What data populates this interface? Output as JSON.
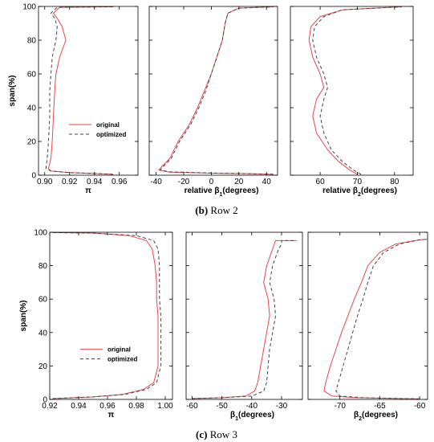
{
  "figure": {
    "rows": [
      {
        "caption_letter": "(b)",
        "caption_text": " Row 2"
      },
      {
        "caption_letter": "(c)",
        "caption_text": " Row 3"
      }
    ]
  },
  "chart_data": [
    {
      "type": "line",
      "row": 0,
      "panel": 0,
      "xlabel": "π",
      "ylabel": "span(%)",
      "xlim": [
        0.895,
        0.975
      ],
      "ylim": [
        0,
        100
      ],
      "xticks": [
        0.9,
        0.92,
        0.94,
        0.96
      ],
      "xtick_labels": [
        "0.90",
        "0.92",
        "0.94",
        "0.96"
      ],
      "yticks": [
        0,
        20,
        40,
        60,
        80,
        100
      ],
      "ytick_labels": [
        "0",
        "20",
        "40",
        "60",
        "80",
        "100"
      ],
      "legend": {
        "position": "inside-left",
        "entries": [
          "original",
          "optimized"
        ]
      },
      "series": [
        {
          "name": "original",
          "color": "#e8474c",
          "dash": "",
          "points": [
            [
              0.955,
              0.5
            ],
            [
              0.94,
              1
            ],
            [
              0.92,
              1.5
            ],
            [
              0.905,
              2.5
            ],
            [
              0.903,
              4
            ],
            [
              0.905,
              10
            ],
            [
              0.906,
              20
            ],
            [
              0.907,
              35
            ],
            [
              0.908,
              50
            ],
            [
              0.909,
              60
            ],
            [
              0.912,
              70
            ],
            [
              0.917,
              80
            ],
            [
              0.914,
              88
            ],
            [
              0.91,
              93
            ],
            [
              0.907,
              96
            ],
            [
              0.912,
              99.5
            ],
            [
              0.955,
              99.8
            ]
          ]
        },
        {
          "name": "optimized",
          "color": "#444444",
          "dash": "4,3",
          "points": [
            [
              0.955,
              0.5
            ],
            [
              0.94,
              1
            ],
            [
              0.92,
              1.5
            ],
            [
              0.905,
              2.5
            ],
            [
              0.901,
              4
            ],
            [
              0.902,
              10
            ],
            [
              0.903,
              20
            ],
            [
              0.904,
              35
            ],
            [
              0.904,
              50
            ],
            [
              0.905,
              60
            ],
            [
              0.906,
              70
            ],
            [
              0.909,
              80
            ],
            [
              0.91,
              88
            ],
            [
              0.908,
              93
            ],
            [
              0.905,
              96
            ],
            [
              0.91,
              99.5
            ],
            [
              0.955,
              99.8
            ]
          ]
        }
      ]
    },
    {
      "type": "line",
      "row": 0,
      "panel": 1,
      "xlabel": "relative β1(degrees)",
      "xlim": [
        -45,
        48
      ],
      "ylim": [
        0,
        100
      ],
      "xticks": [
        -40,
        -20,
        0,
        20,
        40
      ],
      "xtick_labels": [
        "-40",
        "-20",
        "0",
        "20",
        "40"
      ],
      "yticks": [
        0,
        20,
        40,
        60,
        80,
        100
      ],
      "series": [
        {
          "name": "original",
          "color": "#e8474c",
          "dash": "",
          "points": [
            [
              45,
              0.5
            ],
            [
              20,
              1
            ],
            [
              0,
              1.2
            ],
            [
              -30,
              1.8
            ],
            [
              -38,
              3
            ],
            [
              -36,
              5
            ],
            [
              -30,
              10
            ],
            [
              -24,
              20
            ],
            [
              -16,
              30
            ],
            [
              -10,
              40
            ],
            [
              -5,
              50
            ],
            [
              0,
              60
            ],
            [
              4,
              70
            ],
            [
              8,
              80
            ],
            [
              10,
              90
            ],
            [
              12,
              96
            ],
            [
              20,
              99
            ],
            [
              45,
              99.8
            ]
          ]
        },
        {
          "name": "optimized",
          "color": "#444444",
          "dash": "4,3",
          "points": [
            [
              45,
              0.5
            ],
            [
              20,
              1
            ],
            [
              0,
              1.3
            ],
            [
              -30,
              2
            ],
            [
              -37,
              3
            ],
            [
              -35,
              5
            ],
            [
              -29,
              10
            ],
            [
              -23,
              20
            ],
            [
              -15,
              30
            ],
            [
              -9,
              40
            ],
            [
              -4,
              50
            ],
            [
              0,
              60
            ],
            [
              4,
              70
            ],
            [
              8,
              80
            ],
            [
              10,
              90
            ],
            [
              12,
              96
            ],
            [
              20,
              99
            ],
            [
              45,
              99.8
            ]
          ]
        }
      ]
    },
    {
      "type": "line",
      "row": 0,
      "panel": 2,
      "xlabel": "relative β2(degrees)",
      "xlim": [
        52,
        85
      ],
      "ylim": [
        0,
        100
      ],
      "xticks": [
        60,
        70,
        80
      ],
      "xtick_labels": [
        "60",
        "70",
        "80"
      ],
      "yticks": [
        0,
        20,
        40,
        60,
        80,
        100
      ],
      "series": [
        {
          "name": "original",
          "color": "#e8474c",
          "dash": "",
          "points": [
            [
              70,
              0.5
            ],
            [
              68,
              3
            ],
            [
              65,
              8
            ],
            [
              62,
              15
            ],
            [
              59,
              25
            ],
            [
              58,
              35
            ],
            [
              59,
              45
            ],
            [
              61,
              52
            ],
            [
              60,
              60
            ],
            [
              58,
              70
            ],
            [
              57,
              80
            ],
            [
              57.5,
              88
            ],
            [
              60,
              94
            ],
            [
              66,
              98
            ],
            [
              82,
              99.8
            ]
          ]
        },
        {
          "name": "optimized",
          "color": "#444444",
          "dash": "4,3",
          "points": [
            [
              71,
              0.5
            ],
            [
              69,
              3
            ],
            [
              66,
              8
            ],
            [
              63,
              15
            ],
            [
              61,
              25
            ],
            [
              60,
              35
            ],
            [
              61,
              45
            ],
            [
              62,
              52
            ],
            [
              61,
              60
            ],
            [
              59,
              70
            ],
            [
              58,
              80
            ],
            [
              58.5,
              88
            ],
            [
              61,
              94
            ],
            [
              66,
              98
            ],
            [
              82,
              99.8
            ]
          ]
        }
      ]
    },
    {
      "type": "line",
      "row": 1,
      "panel": 0,
      "xlabel": "π",
      "ylabel": "span(%)",
      "xlim": [
        0.92,
        1.005
      ],
      "ylim": [
        0,
        100
      ],
      "xticks": [
        0.92,
        0.94,
        0.96,
        0.98,
        1.0
      ],
      "xtick_labels": [
        "0.92",
        "0.94",
        "0.96",
        "0.98",
        "1.00"
      ],
      "yticks": [
        0,
        20,
        40,
        60,
        80,
        100
      ],
      "ytick_labels": [
        "0",
        "20",
        "40",
        "60",
        "80",
        "100"
      ],
      "legend": {
        "position": "inside-left",
        "entries": [
          "original",
          "optimized"
        ]
      },
      "series": [
        {
          "name": "original",
          "color": "#e8474c",
          "dash": "",
          "points": [
            [
              0.922,
              0.5
            ],
            [
              0.95,
              1.5
            ],
            [
              0.97,
              3
            ],
            [
              0.985,
              6
            ],
            [
              0.992,
              10
            ],
            [
              0.995,
              20
            ],
            [
              0.995,
              30
            ],
            [
              0.995,
              40
            ],
            [
              0.995,
              50
            ],
            [
              0.994,
              60
            ],
            [
              0.994,
              70
            ],
            [
              0.993,
              80
            ],
            [
              0.991,
              90
            ],
            [
              0.987,
              95
            ],
            [
              0.975,
              98
            ],
            [
              0.95,
              99.5
            ],
            [
              0.922,
              99.8
            ]
          ]
        },
        {
          "name": "optimized",
          "color": "#444444",
          "dash": "4,3",
          "points": [
            [
              0.922,
              0.5
            ],
            [
              0.95,
              1.5
            ],
            [
              0.972,
              3
            ],
            [
              0.987,
              6
            ],
            [
              0.994,
              10
            ],
            [
              0.997,
              20
            ],
            [
              0.997,
              30
            ],
            [
              0.997,
              40
            ],
            [
              0.997,
              50
            ],
            [
              0.996,
              60
            ],
            [
              0.996,
              70
            ],
            [
              0.996,
              80
            ],
            [
              0.995,
              90
            ],
            [
              0.992,
              95
            ],
            [
              0.98,
              98
            ],
            [
              0.95,
              99.5
            ],
            [
              0.922,
              99.8
            ]
          ]
        }
      ]
    },
    {
      "type": "line",
      "row": 1,
      "panel": 1,
      "xlabel": "β1(degrees)",
      "xlim": [
        -62,
        -23
      ],
      "ylim": [
        0,
        100
      ],
      "xticks": [
        -60,
        -50,
        -40,
        -30
      ],
      "xtick_labels": [
        "-60",
        "-50",
        "-40",
        "-30"
      ],
      "yticks": [
        0,
        20,
        40,
        60,
        80,
        100
      ],
      "series": [
        {
          "name": "original",
          "color": "#e8474c",
          "dash": "",
          "points": [
            [
              -60,
              0.5
            ],
            [
              -50,
              1
            ],
            [
              -42,
              2
            ],
            [
              -39,
              5
            ],
            [
              -38,
              10
            ],
            [
              -37,
              20
            ],
            [
              -36,
              30
            ],
            [
              -35,
              40
            ],
            [
              -34,
              50
            ],
            [
              -34.5,
              60
            ],
            [
              -36,
              70
            ],
            [
              -35,
              80
            ],
            [
              -33,
              90
            ],
            [
              -32,
              95
            ],
            [
              -25,
              95
            ]
          ]
        },
        {
          "name": "optimized",
          "color": "#444444",
          "dash": "4,3",
          "points": [
            [
              -60,
              0.5
            ],
            [
              -50,
              1
            ],
            [
              -40,
              2
            ],
            [
              -36,
              5
            ],
            [
              -35,
              10
            ],
            [
              -34.5,
              20
            ],
            [
              -34,
              30
            ],
            [
              -33,
              40
            ],
            [
              -32,
              50
            ],
            [
              -32.5,
              60
            ],
            [
              -34,
              70
            ],
            [
              -33,
              80
            ],
            [
              -31,
              90
            ],
            [
              -30,
              93
            ],
            [
              -30,
              95
            ],
            [
              -25,
              95
            ]
          ]
        }
      ]
    },
    {
      "type": "line",
      "row": 1,
      "panel": 2,
      "xlabel": "β2(degrees)",
      "xlim": [
        -74,
        -59
      ],
      "ylim": [
        0,
        100
      ],
      "xticks": [
        -70,
        -65,
        -60
      ],
      "xtick_labels": [
        "-70",
        "-65",
        "-60"
      ],
      "yticks": [
        0,
        20,
        40,
        60,
        80,
        100
      ],
      "series": [
        {
          "name": "original",
          "color": "#e8474c",
          "dash": "",
          "points": [
            [
              -60,
              0.3
            ],
            [
              -68,
              1
            ],
            [
              -71,
              2
            ],
            [
              -72,
              5
            ],
            [
              -71.8,
              10
            ],
            [
              -71.2,
              20
            ],
            [
              -70.5,
              30
            ],
            [
              -69.8,
              40
            ],
            [
              -69,
              50
            ],
            [
              -68.2,
              60
            ],
            [
              -67.3,
              70
            ],
            [
              -66.5,
              80
            ],
            [
              -65,
              88
            ],
            [
              -63,
              93
            ],
            [
              -60,
              95.5
            ],
            [
              -59,
              95.8
            ]
          ]
        },
        {
          "name": "optimized",
          "color": "#444444",
          "dash": "4,3",
          "points": [
            [
              -60,
              0.3
            ],
            [
              -67,
              1
            ],
            [
              -70,
              2
            ],
            [
              -70.5,
              5
            ],
            [
              -70.2,
              10
            ],
            [
              -69.6,
              20
            ],
            [
              -69,
              30
            ],
            [
              -68.4,
              40
            ],
            [
              -67.8,
              50
            ],
            [
              -67.1,
              60
            ],
            [
              -66.5,
              70
            ],
            [
              -65.8,
              80
            ],
            [
              -64.5,
              88
            ],
            [
              -62.5,
              93
            ],
            [
              -60,
              95.5
            ],
            [
              -59,
              95.8
            ]
          ]
        }
      ]
    }
  ]
}
